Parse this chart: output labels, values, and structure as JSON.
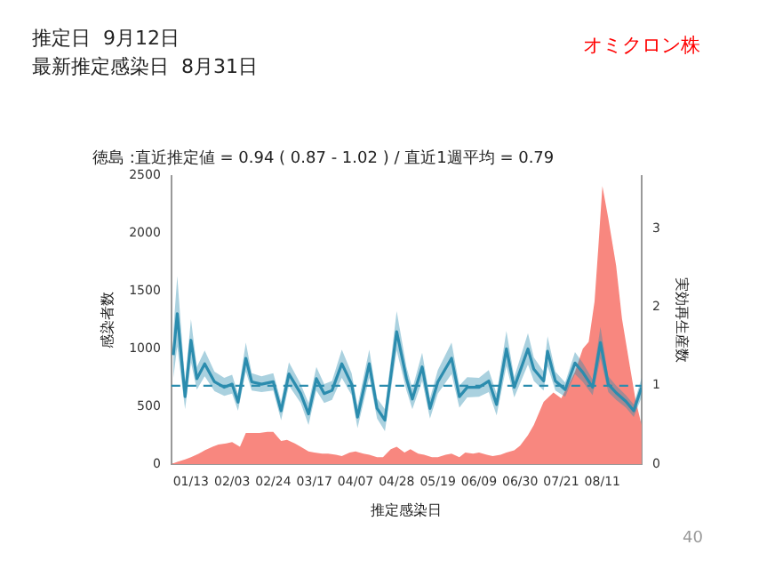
{
  "chart_data": {
    "type": "area",
    "title": "徳島 :直近推定値 = 0.94 ( 0.87 - 1.02 ) / 直近1週平均 = 0.79",
    "xlabel": "推定感染日",
    "ylabel": "感染者数",
    "y2label": "実効再生産数",
    "annotations": [
      "推定日  9月12日",
      "最新推定感染日  8月31日",
      "オミクロン株",
      "40"
    ],
    "xlim": [
      "--01-03",
      "--08-31"
    ],
    "xticks": [
      {
        "value": "--01-13",
        "label": "01/13"
      },
      {
        "value": "--02-03",
        "label": "02/03"
      },
      {
        "value": "--02-24",
        "label": "02/24"
      },
      {
        "value": "--03-17",
        "label": "03/17"
      },
      {
        "value": "--04-07",
        "label": "04/07"
      },
      {
        "value": "--04-28",
        "label": "04/28"
      },
      {
        "value": "--05-19",
        "label": "05/19"
      },
      {
        "value": "--06-09",
        "label": "06/09"
      },
      {
        "value": "--06-30",
        "label": "06/30"
      },
      {
        "value": "--07-21",
        "label": "07/21"
      },
      {
        "value": "--08-11",
        "label": "08/11"
      }
    ],
    "ylim": [
      0,
      2500
    ],
    "yticks": [
      0,
      500,
      1000,
      1500,
      2000,
      2500
    ],
    "y2lim": [
      0,
      3.68
    ],
    "y2ticks": [
      0,
      1,
      2,
      3
    ],
    "grid": false,
    "legend": false,
    "ref_lines": [
      {
        "axis": "y2",
        "value": 1,
        "color": "#2b8cae",
        "line_style": "dashed"
      }
    ],
    "series": [
      {
        "color": "#f8877f",
        "x": [
          "--01-03",
          "--01-06",
          "--01-10",
          "--01-13",
          "--01-17",
          "--01-20",
          "--01-24",
          "--01-27",
          "--01-31",
          "--02-03",
          "--02-07",
          "--02-10",
          "--02-14",
          "--02-17",
          "--02-21",
          "--02-24",
          "--02-28",
          "--03-03",
          "--03-07",
          "--03-10",
          "--03-14",
          "--03-17",
          "--03-21",
          "--03-24",
          "--03-28",
          "--03-31",
          "--04-04",
          "--04-07",
          "--04-11",
          "--04-14",
          "--04-18",
          "--04-21",
          "--04-25",
          "--04-28",
          "--05-02",
          "--05-05",
          "--05-09",
          "--05-12",
          "--05-16",
          "--05-19",
          "--05-23",
          "--05-26",
          "--05-30",
          "--06-02",
          "--06-06",
          "--06-09",
          "--06-13",
          "--06-16",
          "--06-20",
          "--06-23",
          "--06-27",
          "--06-30",
          "--07-04",
          "--07-07",
          "--07-12",
          "--07-17",
          "--07-21",
          "--07-25",
          "--07-28",
          "--08-01",
          "--08-04",
          "--08-07",
          "--08-09",
          "--08-11",
          "--08-14",
          "--08-18",
          "--08-21",
          "--08-25",
          "--08-28",
          "--08-31"
        ],
        "values": [
          0,
          20,
          40,
          60,
          90,
          120,
          150,
          170,
          180,
          190,
          150,
          270,
          270,
          270,
          280,
          280,
          200,
          210,
          180,
          150,
          110,
          100,
          90,
          90,
          80,
          70,
          100,
          110,
          90,
          80,
          60,
          60,
          130,
          150,
          100,
          130,
          90,
          80,
          60,
          60,
          80,
          90,
          60,
          100,
          90,
          100,
          80,
          70,
          80,
          100,
          120,
          160,
          250,
          340,
          540,
          620,
          570,
          700,
          800,
          1000,
          1060,
          1410,
          1900,
          2410,
          2130,
          1720,
          1260,
          850,
          550,
          340
        ]
      },
      {
        "type": "line",
        "axis": "y2",
        "color": "#2b8cae",
        "x": [
          "--01-04",
          "--01-06",
          "--01-10",
          "--01-13",
          "--01-16",
          "--01-20",
          "--01-25",
          "--01-30",
          "--02-03",
          "--02-06",
          "--02-10",
          "--02-13",
          "--02-18",
          "--02-24",
          "--02-28",
          "--03-04",
          "--03-10",
          "--03-14",
          "--03-18",
          "--03-22",
          "--03-26",
          "--03-31",
          "--04-05",
          "--04-08",
          "--04-14",
          "--04-18",
          "--04-22",
          "--04-28",
          "--05-03",
          "--05-06",
          "--05-11",
          "--05-15",
          "--05-19",
          "--05-26",
          "--05-30",
          "--06-03",
          "--06-09",
          "--06-14",
          "--06-18",
          "--06-23",
          "--06-27",
          "--07-04",
          "--07-07",
          "--07-12",
          "--07-14",
          "--07-18",
          "--07-23",
          "--07-28",
          "--08-01",
          "--08-06",
          "--08-10",
          "--08-14",
          "--08-18",
          "--08-23",
          "--08-27",
          "--08-31"
        ],
        "values": [
          1.39,
          1.92,
          0.86,
          1.58,
          1.09,
          1.28,
          1.05,
          0.98,
          1.02,
          0.79,
          1.35,
          1.05,
          1.02,
          1.05,
          0.68,
          1.15,
          0.9,
          0.64,
          1.09,
          0.9,
          0.94,
          1.28,
          1.02,
          0.6,
          1.28,
          0.71,
          0.56,
          1.69,
          1.09,
          0.83,
          1.24,
          0.71,
          1.05,
          1.35,
          0.86,
          0.98,
          0.98,
          1.06,
          0.76,
          1.47,
          0.98,
          1.47,
          1.21,
          1.06,
          1.44,
          1.06,
          0.95,
          1.29,
          1.17,
          0.98,
          1.55,
          1.02,
          0.91,
          0.8,
          0.68,
          0.98
        ],
        "lower": [
          1.1,
          1.5,
          0.7,
          1.3,
          0.95,
          1.12,
          0.93,
          0.87,
          0.9,
          0.68,
          1.18,
          0.94,
          0.92,
          0.94,
          0.56,
          1.0,
          0.78,
          0.5,
          0.94,
          0.78,
          0.82,
          1.1,
          0.88,
          0.46,
          1.1,
          0.58,
          0.42,
          1.45,
          0.94,
          0.7,
          1.06,
          0.58,
          0.9,
          1.15,
          0.72,
          0.85,
          0.86,
          0.92,
          0.62,
          1.25,
          0.85,
          1.27,
          1.06,
          0.94,
          1.25,
          0.94,
          0.86,
          1.15,
          1.05,
          0.88,
          1.35,
          0.92,
          0.82,
          0.72,
          0.6,
          0.85
        ],
        "upper": [
          1.7,
          2.4,
          1.05,
          1.85,
          1.24,
          1.45,
          1.18,
          1.1,
          1.14,
          0.9,
          1.55,
          1.16,
          1.12,
          1.16,
          0.8,
          1.3,
          1.02,
          0.78,
          1.24,
          1.02,
          1.06,
          1.46,
          1.16,
          0.74,
          1.46,
          0.84,
          0.7,
          1.95,
          1.24,
          0.96,
          1.42,
          0.84,
          1.2,
          1.55,
          1.0,
          1.11,
          1.1,
          1.2,
          0.9,
          1.7,
          1.11,
          1.67,
          1.36,
          1.18,
          1.63,
          1.18,
          1.04,
          1.43,
          1.29,
          1.08,
          1.75,
          1.12,
          1.0,
          0.88,
          0.76,
          1.1
        ]
      }
    ]
  }
}
